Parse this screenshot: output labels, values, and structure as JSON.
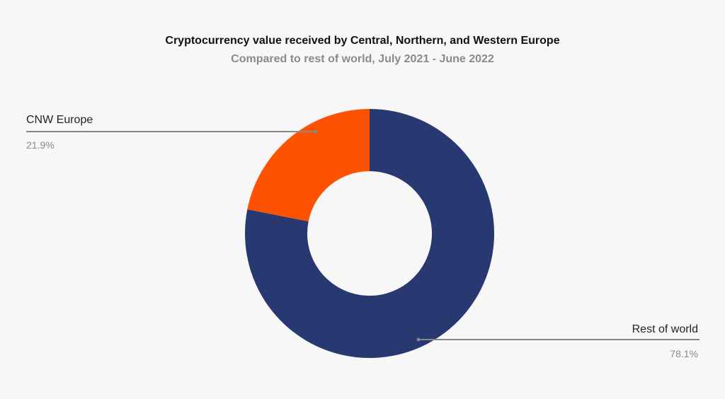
{
  "chart_data": {
    "type": "pie",
    "title": "Cryptocurrency value received by Central, Northern, and Western Europe",
    "subtitle": "Compared to rest of world, July 2021 - June 2022",
    "donut": true,
    "slices": [
      {
        "label": "Rest of world",
        "value": 78.1,
        "display": "78.1%",
        "color": "#283870"
      },
      {
        "label": "CNW Europe",
        "value": 21.9,
        "display": "21.9%",
        "color": "#ff5200"
      }
    ]
  },
  "colors": {
    "background": "#f7f7f7",
    "leader_line": "#888888"
  }
}
